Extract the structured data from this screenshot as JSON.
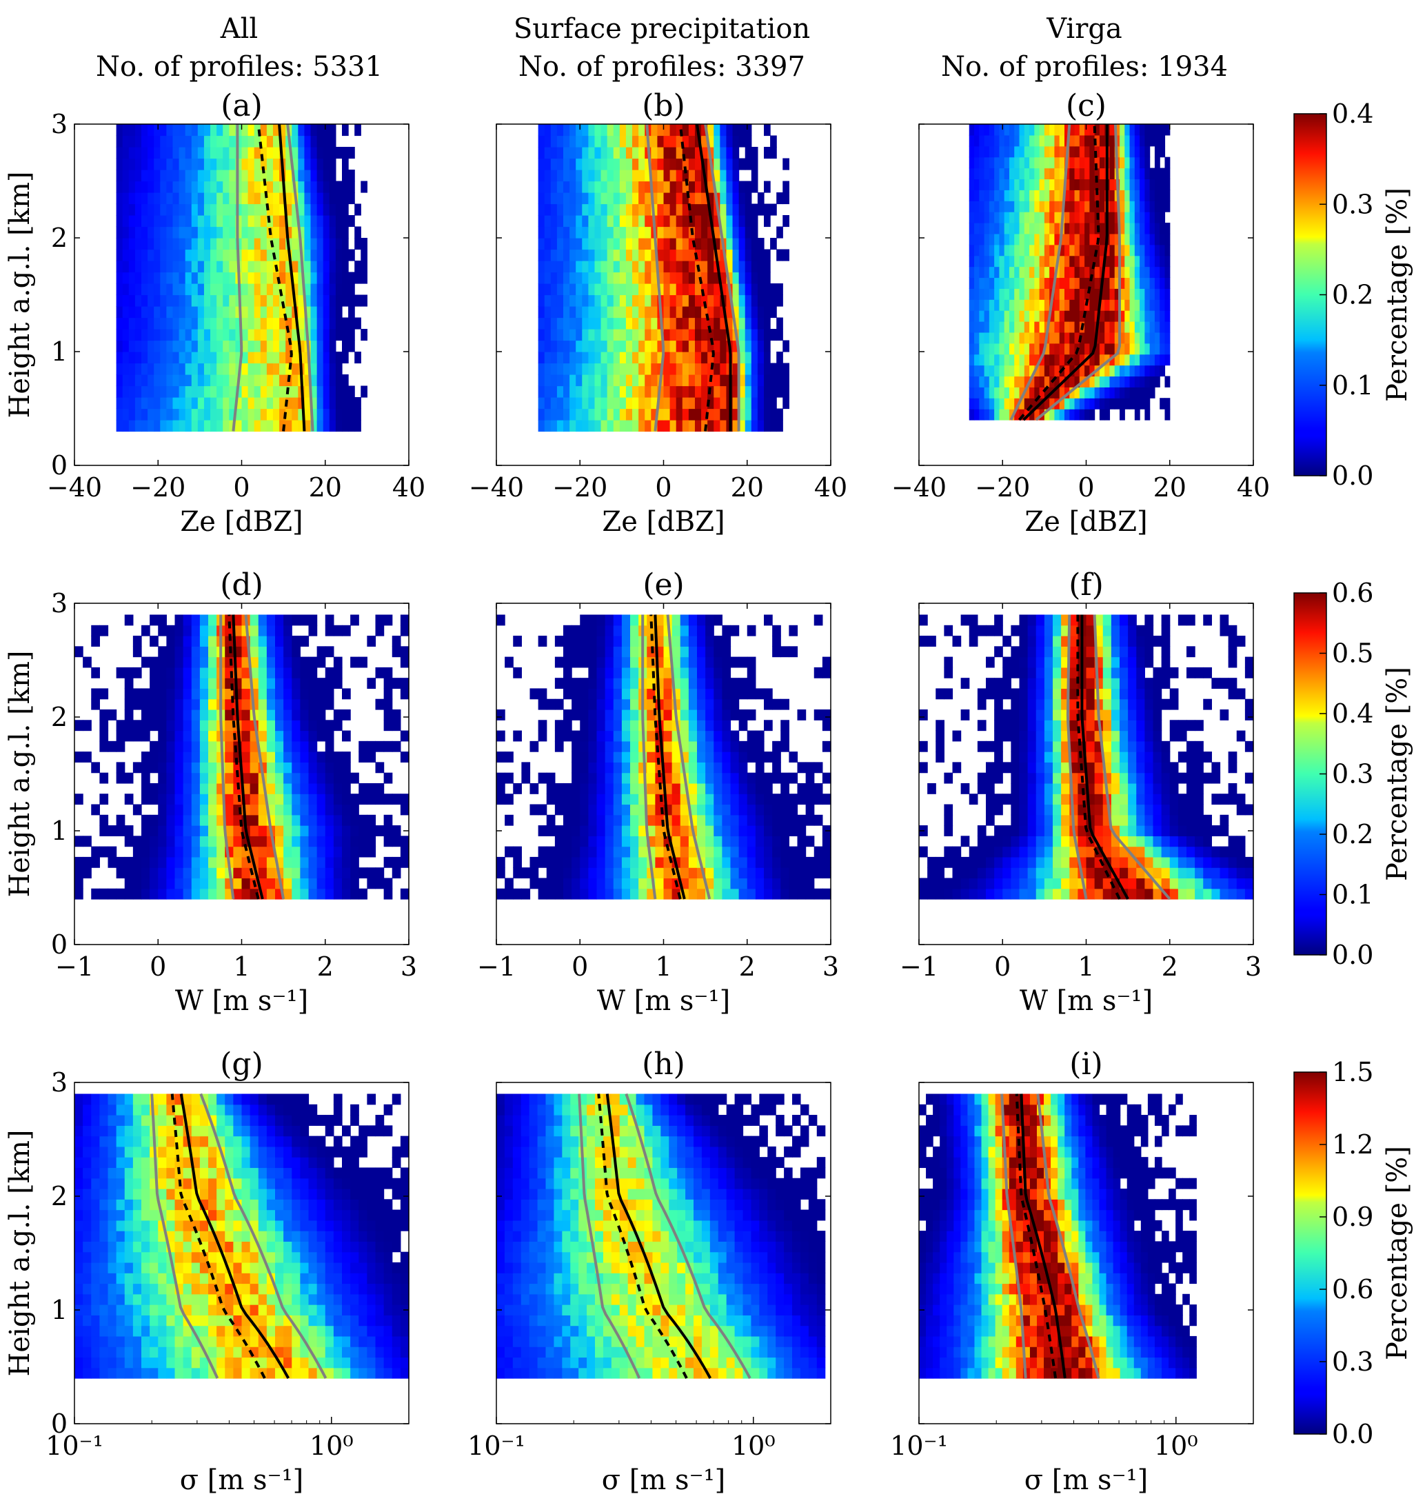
{
  "chart_data": {
    "type": "heatmap",
    "columns": [
      {
        "title": "All",
        "subtitle": "No. of profiles: 5331"
      },
      {
        "title": "Surface precipitation",
        "subtitle": "No. of profiles: 3397"
      },
      {
        "title": "Virga",
        "subtitle": "No. of profiles: 1934"
      }
    ],
    "ylabel": "Height a.g.l. [km]",
    "ylim": [
      0,
      3
    ],
    "yticks": [
      "0",
      "1",
      "2",
      "3"
    ],
    "rows": [
      {
        "variable": "Ze",
        "xlabel": "Ze [dBZ]",
        "xscale": "linear",
        "xlim": [
          -40,
          40
        ],
        "xticks": [
          "−40",
          "−20",
          "0",
          "20",
          "40"
        ],
        "colorbar": {
          "label": "Percentage [%]",
          "range": [
            0.0,
            0.4
          ],
          "ticks": [
            "0.0",
            "0.1",
            "0.2",
            "0.3",
            "0.4"
          ]
        },
        "panels": [
          {
            "label": "(a)",
            "height_km": [
              0.3,
              1.0,
              2.0,
              3.0
            ],
            "median": [
              15,
              14,
              11,
              9
            ],
            "mean": [
              10,
              12,
              7,
              4
            ],
            "p25": [
              -2,
              0,
              -1,
              -1
            ],
            "p75": [
              17,
              16,
              14,
              11
            ],
            "data_range": [
              -30,
              30
            ],
            "peak_pct": 0.28
          },
          {
            "label": "(b)",
            "height_km": [
              0.3,
              1.0,
              2.0,
              3.0
            ],
            "median": [
              16,
              16,
              12,
              8
            ],
            "mean": [
              10,
              12,
              7,
              4
            ],
            "p25": [
              -2,
              0,
              -2,
              -4
            ],
            "p75": [
              18,
              18,
              14,
              10
            ],
            "data_range": [
              -30,
              30
            ],
            "peak_pct": 0.38
          },
          {
            "label": "(c)",
            "height_km": [
              0.4,
              1.0,
              2.0,
              3.0
            ],
            "median": [
              -15,
              2,
              5,
              5
            ],
            "mean": [
              -16,
              -2,
              3,
              2
            ],
            "p25": [
              -18,
              -10,
              -6,
              -4
            ],
            "p75": [
              -12,
              8,
              8,
              7
            ],
            "data_range": [
              -28,
              20
            ],
            "peak_pct": 0.4
          }
        ]
      },
      {
        "variable": "W",
        "xlabel": "W [m s⁻¹]",
        "xscale": "linear",
        "xlim": [
          -1,
          3
        ],
        "xticks": [
          "−1",
          "0",
          "1",
          "2",
          "3"
        ],
        "colorbar": {
          "label": "Percentage [%]",
          "range": [
            0.0,
            0.6
          ],
          "ticks": [
            "0.0",
            "0.1",
            "0.2",
            "0.3",
            "0.4",
            "0.5",
            "0.6"
          ]
        },
        "panels": [
          {
            "label": "(d)",
            "height_km": [
              0.4,
              1.0,
              2.0,
              2.9
            ],
            "median": [
              1.25,
              1.05,
              0.95,
              0.9
            ],
            "mean": [
              1.2,
              1.0,
              0.9,
              0.85
            ],
            "p25": [
              0.9,
              0.8,
              0.75,
              0.75
            ],
            "p75": [
              1.5,
              1.35,
              1.15,
              1.05
            ],
            "data_range": [
              -1,
              3
            ],
            "peak_pct": 0.55
          },
          {
            "label": "(e)",
            "height_km": [
              0.4,
              1.0,
              2.0,
              2.9
            ],
            "median": [
              1.25,
              1.05,
              0.95,
              0.9
            ],
            "mean": [
              1.2,
              1.0,
              0.9,
              0.85
            ],
            "p25": [
              0.9,
              0.8,
              0.75,
              0.75
            ],
            "p75": [
              1.55,
              1.35,
              1.15,
              1.05
            ],
            "data_range": [
              -1,
              3
            ],
            "peak_pct": 0.5
          },
          {
            "label": "(f)",
            "height_km": [
              0.4,
              1.0,
              2.0,
              2.9
            ],
            "median": [
              1.5,
              1.05,
              0.95,
              0.95
            ],
            "mean": [
              1.4,
              1.0,
              0.9,
              0.9
            ],
            "p25": [
              1.0,
              0.85,
              0.78,
              0.8
            ],
            "p75": [
              2.0,
              1.3,
              1.15,
              1.1
            ],
            "data_range": [
              -1,
              3
            ],
            "peak_pct": 0.6
          }
        ]
      },
      {
        "variable": "sigma",
        "xlabel": "σ [m s⁻¹]",
        "xscale": "log",
        "xlim": [
          0.1,
          2.0
        ],
        "xticks": [
          "10⁻¹",
          "10⁰"
        ],
        "colorbar": {
          "label": "Percentage [%]",
          "range": [
            0.0,
            1.5
          ],
          "ticks": [
            "0.0",
            "0.3",
            "0.6",
            "0.9",
            "1.2",
            "1.5"
          ]
        },
        "panels": [
          {
            "label": "(g)",
            "height_km": [
              0.4,
              1.0,
              2.0,
              2.9
            ],
            "median": [
              0.68,
              0.45,
              0.3,
              0.26
            ],
            "mean": [
              0.55,
              0.38,
              0.26,
              0.24
            ],
            "p25": [
              0.36,
              0.26,
              0.21,
              0.2
            ],
            "p75": [
              0.95,
              0.65,
              0.42,
              0.31
            ],
            "data_range": [
              0.1,
              2.0
            ],
            "peak_pct": 1.1
          },
          {
            "label": "(h)",
            "height_km": [
              0.4,
              1.0,
              2.0,
              2.9
            ],
            "median": [
              0.68,
              0.45,
              0.3,
              0.27
            ],
            "mean": [
              0.55,
              0.38,
              0.27,
              0.25
            ],
            "p25": [
              0.36,
              0.26,
              0.22,
              0.21
            ],
            "p75": [
              0.97,
              0.65,
              0.42,
              0.32
            ],
            "data_range": [
              0.1,
              1.9
            ],
            "peak_pct": 1.0
          },
          {
            "label": "(i)",
            "height_km": [
              0.4,
              1.0,
              2.0,
              2.9
            ],
            "median": [
              0.37,
              0.34,
              0.26,
              0.25
            ],
            "mean": [
              0.34,
              0.31,
              0.25,
              0.24
            ],
            "p25": [
              0.26,
              0.25,
              0.22,
              0.21
            ],
            "p75": [
              0.5,
              0.42,
              0.32,
              0.29
            ],
            "data_range": [
              0.1,
              1.2
            ],
            "peak_pct": 1.5
          }
        ]
      }
    ]
  }
}
